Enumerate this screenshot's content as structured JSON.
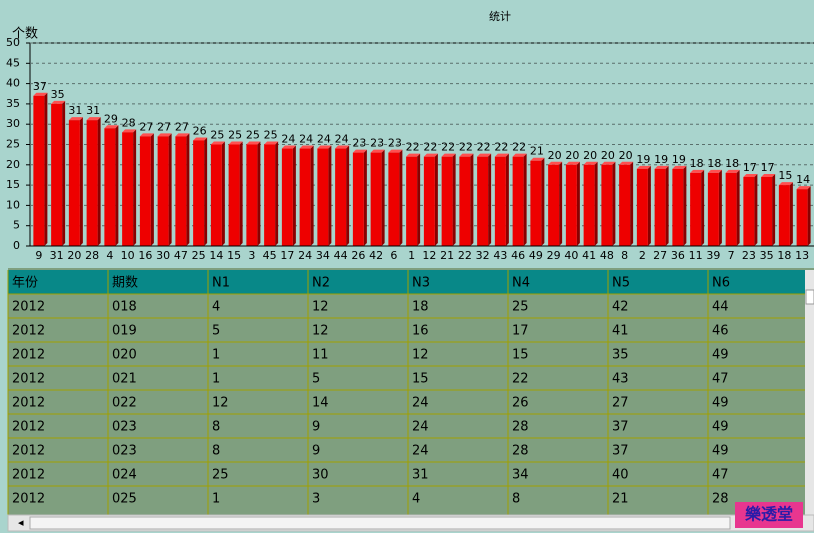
{
  "chart_data": {
    "type": "bar",
    "title": "统计",
    "y_label": "个数",
    "categories": [
      "9",
      "31",
      "20",
      "28",
      "4",
      "10",
      "16",
      "30",
      "47",
      "25",
      "14",
      "15",
      "3",
      "45",
      "17",
      "24",
      "34",
      "44",
      "26",
      "42",
      "6",
      "1",
      "12",
      "21",
      "22",
      "32",
      "43",
      "46",
      "49",
      "29",
      "40",
      "41",
      "48",
      "8",
      "2",
      "27",
      "36",
      "11",
      "39",
      "7",
      "23",
      "35",
      "18",
      "13"
    ],
    "values": [
      37,
      35,
      31,
      31,
      29,
      28,
      27,
      27,
      27,
      26,
      25,
      25,
      25,
      25,
      24,
      24,
      24,
      24,
      23,
      23,
      23,
      22,
      22,
      22,
      22,
      22,
      22,
      22,
      21,
      20,
      20,
      20,
      20,
      20,
      19,
      19,
      19,
      18,
      18,
      18,
      17,
      17,
      15,
      14
    ],
    "color": "#ee0000",
    "ylim": [
      0,
      50
    ],
    "yticks": [
      0,
      5,
      10,
      15,
      20,
      25,
      30,
      35,
      40,
      45,
      50
    ],
    "grid": true
  },
  "table": {
    "columns": [
      "年份",
      "期数",
      "N1",
      "N2",
      "N3",
      "N4",
      "N5",
      "N6"
    ],
    "rows": [
      [
        "2012",
        "018",
        "4",
        "12",
        "18",
        "25",
        "42",
        "44"
      ],
      [
        "2012",
        "019",
        "5",
        "12",
        "16",
        "17",
        "41",
        "46"
      ],
      [
        "2012",
        "020",
        "1",
        "11",
        "12",
        "15",
        "35",
        "49"
      ],
      [
        "2012",
        "021",
        "1",
        "5",
        "15",
        "22",
        "43",
        "47"
      ],
      [
        "2012",
        "022",
        "12",
        "14",
        "24",
        "26",
        "27",
        "49"
      ],
      [
        "2012",
        "023",
        "8",
        "9",
        "24",
        "28",
        "37",
        "49"
      ],
      [
        "2012",
        "023",
        "8",
        "9",
        "24",
        "28",
        "37",
        "49"
      ],
      [
        "2012",
        "024",
        "25",
        "30",
        "31",
        "34",
        "40",
        "47"
      ],
      [
        "2012",
        "025",
        "1",
        "3",
        "4",
        "8",
        "21",
        "28"
      ]
    ]
  },
  "watermark": "樂透堂"
}
